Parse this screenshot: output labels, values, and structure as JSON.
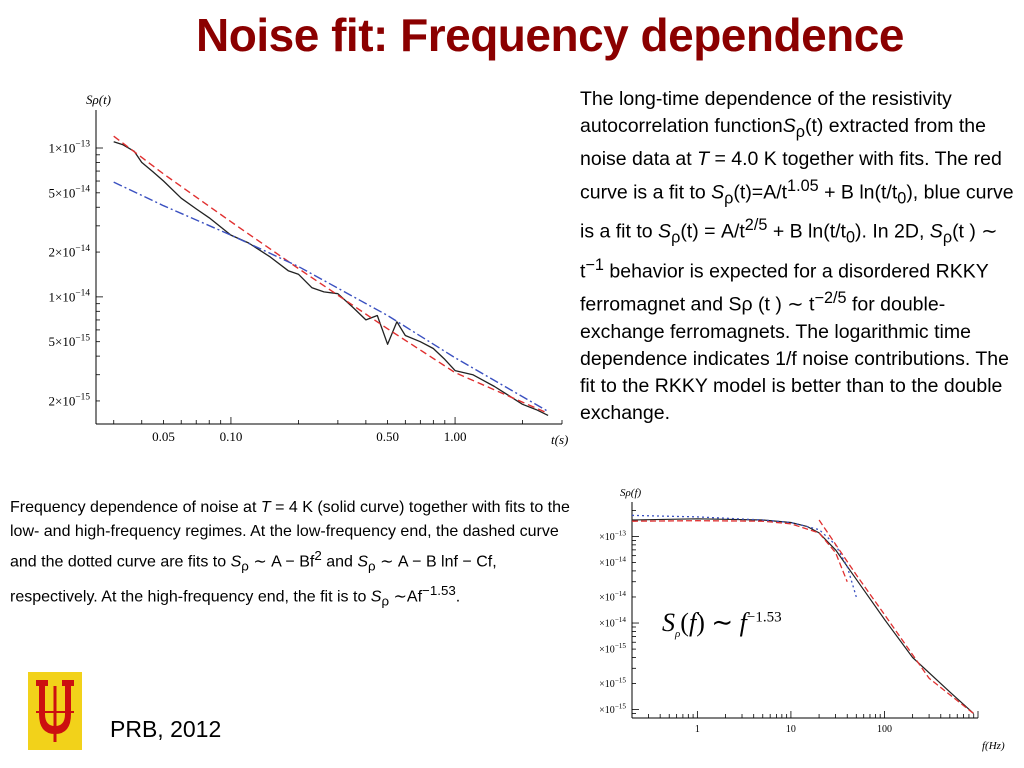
{
  "header": {
    "title": "Noise fit: Frequency dependence"
  },
  "right_caption": {
    "p1": "The long-time dependence of the resistivity autocorrelation function",
    "s": "S",
    "rho": "ρ",
    "p2": "(t) extracted from the noise data at",
    "T": "T",
    "p3": "= 4.0 K together with fits. The red curve is a fit to",
    "fit1_a": "(t)=A/t",
    "exp1": "1.05",
    "p4": "+ B ln(t/t",
    "zero": "0",
    "p5": "), blue curve is a fit to",
    "fit2_a": "(t) = A/t",
    "exp2": "2/5",
    "p6": "+ B ln(t/t",
    "p7": "). In 2D,",
    "p8": "(t ) ∼ t",
    "exp3": "−1",
    "p9": "behavior is expected for a disordered RKKY ferromagnet and Sρ (t ) ∼ t",
    "exp4": "−2/5",
    "p10": "for double-exchange ferromagnets. The logarithmic time dependence indicates 1/f noise contributions. The fit to the RKKY model is better than to the double exchange."
  },
  "left_caption": {
    "p1": "Frequency dependence of noise at",
    "T": "T",
    "p2": "= 4 K (solid curve) together with fits to the low- and high-frequency regimes. At the low-frequency end, the dashed curve and the dotted curve are fits to",
    "f1": "∼ A − Bf",
    "e1": "2",
    "p3": "and",
    "f2": "∼ A − B lnf − Cf,",
    "p4": "respectively. At the high-frequency end, the fit is to",
    "f3": "∼Af",
    "e3": "−1.53",
    "end": "."
  },
  "reference": {
    "text": "PRB, 2012"
  },
  "formula": {
    "s": "S",
    "rho": "ρ",
    "f": "f",
    "tilde": "∼",
    "f2": "f",
    "exp": "−1.53"
  },
  "colors": {
    "title": "#8b0000",
    "data_curve": "#222222",
    "red_fit": "#e03030",
    "blue_fit": "#3a50c0",
    "logo_red": "#cc1010",
    "logo_yellow": "#f2d21a"
  },
  "chart_data": [
    {
      "type": "line",
      "ylabel": "Sρ(t)",
      "xlabel": "t(s)",
      "x_scale": "log",
      "y_scale": "log",
      "xlim": [
        0.025,
        3.0
      ],
      "ylim": [
        1.4e-15,
        1.8e-13
      ],
      "x_ticks": [
        0.05,
        0.1,
        0.5,
        1.0
      ],
      "x_tick_labels": [
        "0.05",
        "0.10",
        "0.50",
        "1.00"
      ],
      "y_ticks": [
        1e-13,
        5e-14,
        2e-14,
        1e-14,
        5e-15,
        2e-15
      ],
      "y_tick_labels": [
        "1×10−13",
        "5×10−14",
        "2×10−14",
        "1×10−14",
        "5×10−15",
        "2×10−15"
      ],
      "series": [
        {
          "role": "data",
          "color": "#222222",
          "x": [
            0.03,
            0.033,
            0.037,
            0.04,
            0.045,
            0.05,
            0.06,
            0.07,
            0.08,
            0.1,
            0.12,
            0.15,
            0.18,
            0.2,
            0.23,
            0.26,
            0.3,
            0.35,
            0.4,
            0.45,
            0.5,
            0.55,
            0.6,
            0.7,
            0.8,
            0.9,
            1.0,
            1.2,
            1.5,
            1.8,
            2.0,
            2.3,
            2.6
          ],
          "y": [
            1.1e-13,
            1.05e-13,
            9.5e-14,
            8e-14,
            6.9e-14,
            6e-14,
            4.6e-14,
            3.9e-14,
            3.4e-14,
            2.6e-14,
            2.3e-14,
            1.85e-14,
            1.5e-14,
            1.42e-14,
            1.15e-14,
            1.08e-14,
            1.05e-14,
            8.5e-15,
            7e-15,
            7.5e-15,
            4.8e-15,
            6.8e-15,
            5.5e-15,
            5e-15,
            4.5e-15,
            3.8e-15,
            3.2e-15,
            3e-15,
            2.5e-15,
            2.1e-15,
            1.9e-15,
            1.75e-15,
            1.6e-15
          ]
        },
        {
          "role": "red fit",
          "color": "#e03030",
          "x": [
            0.03,
            0.05,
            0.1,
            0.2,
            0.5,
            1.0,
            2.6
          ],
          "y": [
            1.2e-13,
            6.7e-14,
            3.2e-14,
            1.55e-14,
            6.1e-15,
            3.1e-15,
            1.65e-15
          ]
        },
        {
          "role": "blue fit",
          "color": "#3a50c0",
          "x": [
            0.03,
            0.05,
            0.1,
            0.2,
            0.5,
            1.0,
            2.6
          ],
          "y": [
            5.9e-14,
            4.1e-14,
            2.6e-14,
            1.6e-14,
            7.5e-15,
            3.9e-15,
            1.7e-15
          ]
        }
      ]
    },
    {
      "type": "line",
      "ylabel": "Sρ(f)",
      "xlabel": "f(Hz)",
      "x_scale": "log",
      "y_scale": "log",
      "xlim": [
        0.2,
        1000
      ],
      "ylim": [
        8e-16,
        2.5e-13
      ],
      "x_ticks": [
        1,
        10,
        100
      ],
      "x_tick_labels": [
        "1",
        "10",
        "100"
      ],
      "y_ticks": [
        1e-13,
        5e-14,
        2e-14,
        1e-14,
        5e-15,
        2e-15,
        1e-15
      ],
      "y_tick_labels": [
        "1×10−13",
        "5×10−14",
        "2×10−14",
        "1×10−14",
        "5×10−15",
        "2×10−15",
        "1×10−15"
      ],
      "series": [
        {
          "role": "data",
          "color": "#222222",
          "x": [
            0.2,
            0.5,
            1,
            2,
            5,
            10,
            15,
            20,
            30,
            50,
            100,
            200,
            500,
            900
          ],
          "y": [
            1.55e-13,
            1.58e-13,
            1.6e-13,
            1.58e-13,
            1.55e-13,
            1.45e-13,
            1.3e-13,
            1.1e-13,
            7e-14,
            3.2e-14,
            1.1e-14,
            4e-15,
            1.6e-15,
            9e-16
          ]
        },
        {
          "role": "dashed fit",
          "color": "#e03030",
          "x": [
            0.2,
            1,
            5,
            10,
            20,
            30,
            40
          ],
          "y": [
            1.5e-13,
            1.52e-13,
            1.5e-13,
            1.4e-13,
            1.1e-13,
            6.5e-14,
            3e-14
          ]
        },
        {
          "role": "dotted fit",
          "color": "#3a50c0",
          "x": [
            0.2,
            1,
            5,
            10,
            20,
            30,
            40,
            50
          ],
          "y": [
            1.75e-13,
            1.68e-13,
            1.55e-13,
            1.45e-13,
            1.2e-13,
            8e-14,
            4.5e-14,
            2e-14
          ]
        },
        {
          "role": "high-frequency fit",
          "color": "#e03030",
          "x": [
            20,
            50,
            100,
            300,
            900
          ],
          "y": [
            1.55e-13,
            3.6e-14,
            1.25e-14,
            2.3e-15,
            9e-16
          ]
        }
      ]
    }
  ]
}
